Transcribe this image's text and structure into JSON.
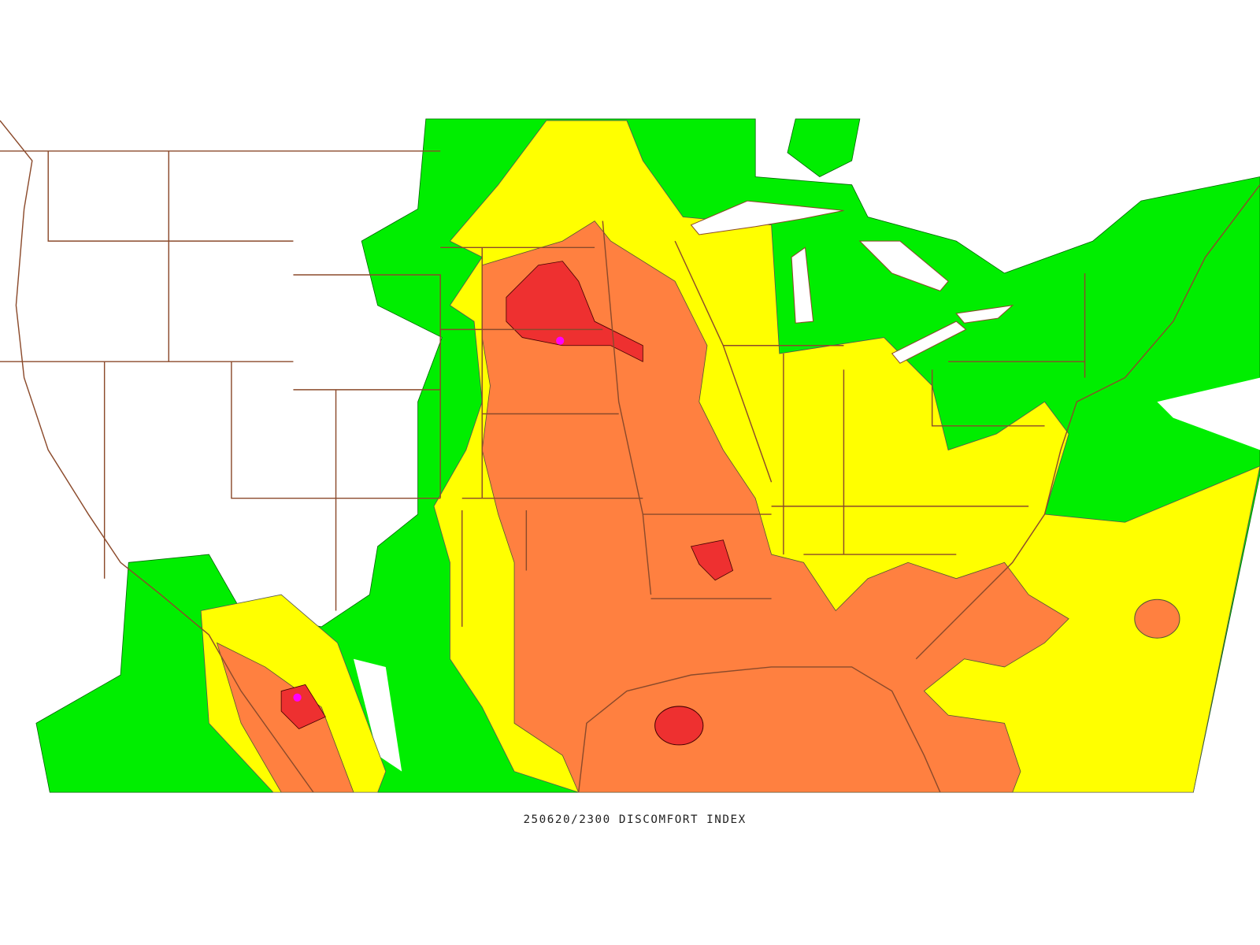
{
  "caption": "250620/2300 DISCOMFORT INDEX"
}
